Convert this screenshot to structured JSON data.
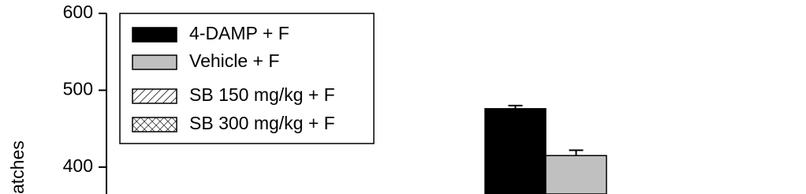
{
  "chart_data": {
    "type": "bar",
    "y_label": "atches",
    "categories": [
      null
    ],
    "series": [
      {
        "name": "4-DAMP + F",
        "color": "#000000",
        "pattern": "solid",
        "values": [
          476
        ],
        "errors": [
          4
        ]
      },
      {
        "name": "Vehicle + F",
        "color": "#c0c0c0",
        "pattern": "solid",
        "values": [
          415
        ],
        "errors": [
          7
        ]
      },
      {
        "name": "SB 150 mg/kg + F",
        "color": "#ffffff",
        "pattern": "diagonal",
        "values": [
          null
        ],
        "errors": [
          null
        ]
      },
      {
        "name": "SB 300 mg/kg + F",
        "color": "#ffffff",
        "pattern": "cross",
        "values": [
          null
        ],
        "errors": [
          null
        ]
      }
    ],
    "ylim": [
      365,
      600
    ],
    "yticks": [
      400,
      500,
      600
    ],
    "legend": "upper left"
  }
}
